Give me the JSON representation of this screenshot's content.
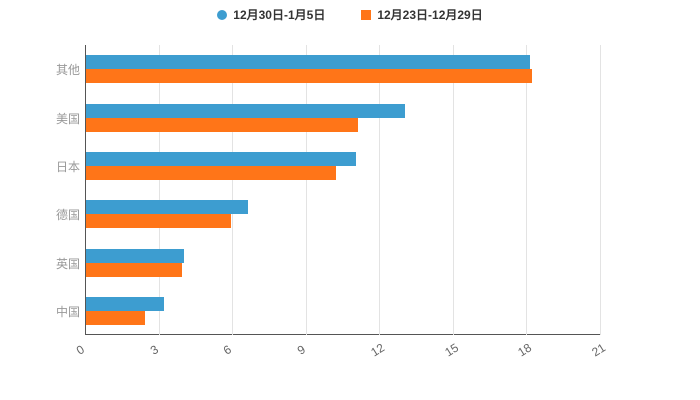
{
  "chart_data": {
    "type": "bar",
    "orientation": "horizontal",
    "title": "",
    "xlabel": "",
    "ylabel": "",
    "categories": [
      "其他",
      "美国",
      "日本",
      "德国",
      "英国",
      "中国"
    ],
    "series": [
      {
        "name": "12月30日-1月5日",
        "color": "#3D9DD0",
        "values": [
          18.1,
          13.0,
          11.0,
          6.6,
          4.0,
          3.2
        ]
      },
      {
        "name": "12月23日-12月29日",
        "color": "#FF7518",
        "values": [
          18.2,
          11.1,
          10.2,
          5.9,
          3.9,
          2.4
        ]
      }
    ],
    "xlim": [
      0,
      21
    ],
    "xticks": [
      0,
      3,
      6,
      9,
      12,
      15,
      18,
      21
    ],
    "grid": true,
    "legend_position": "top"
  },
  "colors": {
    "background": "#ffffff",
    "grid": "#e3e3e3",
    "axis": "#555555",
    "tick_label": "#666666",
    "category_label": "#999999",
    "legend_text": "#333333"
  }
}
